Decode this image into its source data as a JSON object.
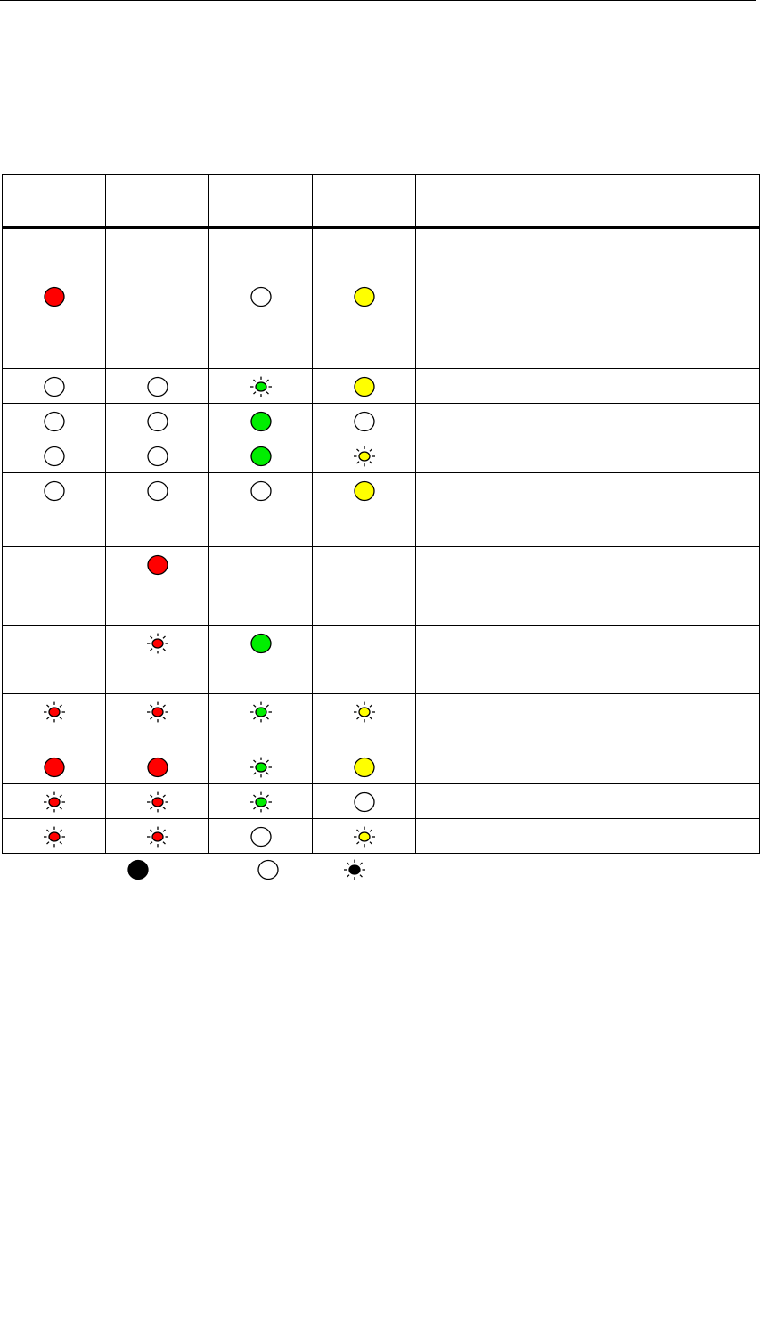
{
  "colors": {
    "red": "#ff0000",
    "green": "#00ee00",
    "yellow": "#ffff00",
    "legend": "#000000"
  },
  "columns": [
    "red",
    "red",
    "green",
    "yellow"
  ],
  "rows": [
    [
      "on",
      "none",
      "off",
      "on"
    ],
    [
      "off",
      "off",
      "blink",
      "on"
    ],
    [
      "off",
      "off",
      "on",
      "off"
    ],
    [
      "off",
      "off",
      "on",
      "blink"
    ],
    [
      "off",
      "off",
      "off",
      "on"
    ],
    [
      "none",
      "on",
      "none",
      "none"
    ],
    [
      "none",
      "blink",
      "on",
      "none"
    ],
    [
      "blink",
      "blink",
      "blink",
      "blink"
    ],
    [
      "on",
      "on",
      "blink",
      "on"
    ],
    [
      "blink",
      "blink",
      "blink",
      "off"
    ],
    [
      "blink",
      "blink",
      "off",
      "blink"
    ]
  ],
  "legend": [
    "on",
    "off",
    "blink"
  ]
}
